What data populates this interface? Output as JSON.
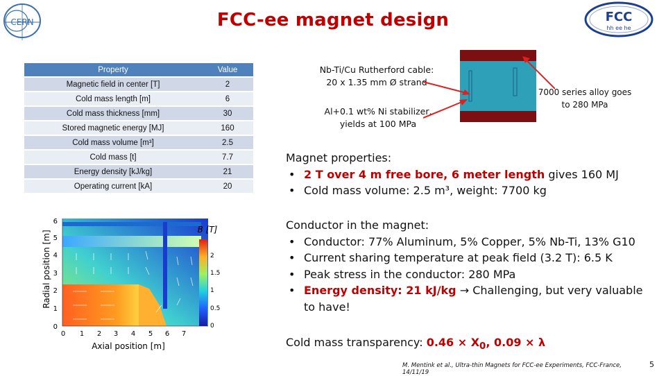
{
  "header": {
    "title": "FCC-ee magnet design",
    "cern_logo_text": "CERN",
    "fcc_logo_text": "FCC",
    "fcc_logo_sub": "hh ee he"
  },
  "table": {
    "headers": [
      "Property",
      "Value"
    ],
    "rows": [
      {
        "property": "Magnetic field in center [T]",
        "value": "2"
      },
      {
        "property": "Cold mass length [m]",
        "value": "6"
      },
      {
        "property": "Cold mass thickness [mm]",
        "value": "30"
      },
      {
        "property": "Stored magnetic energy [MJ]",
        "value": "160"
      },
      {
        "property": "Cold mass volume [m³]",
        "value": "2.5"
      },
      {
        "property": "Cold mass [t]",
        "value": "7.7"
      },
      {
        "property": "Energy density [kJ/kg]",
        "value": "21"
      },
      {
        "property": "Operating current [kA]",
        "value": "20"
      }
    ]
  },
  "cable_figure": {
    "label1_line1": "Nb-Ti/Cu Rutherford cable:",
    "label1_line2": "20 x 1.35 mm Ø strand",
    "label2_line1": "Al+0.1 wt% Ni stabilizer,",
    "label2_line2": "yields at 100 MPa",
    "label3_line1": "7000 series alloy goes",
    "label3_line2": "to 280 MPa",
    "colors": {
      "conductor": "#2ea0b8",
      "alloy": "#7b0f12",
      "arrow": "#e0201c"
    }
  },
  "field_map": {
    "ylabel": "Radial position [m]",
    "xlabel": "Axial position [m]",
    "x_ticks": [
      "0",
      "1",
      "2",
      "3",
      "4",
      "5",
      "6",
      "7"
    ],
    "y_ticks": [
      "0",
      "1",
      "2",
      "3",
      "4",
      "5",
      "6"
    ],
    "colorbar_title": "B [T]",
    "colorbar_ticks": [
      "0",
      "0.5",
      "1",
      "1.5",
      "2"
    ],
    "colorbar_range": [
      0,
      2.4
    ]
  },
  "magnet_properties": {
    "heading": "Magnet properties:",
    "bullet1_red": "2 T over 4 m free bore, 6 meter length",
    "bullet1_rest": " gives 160 MJ",
    "bullet2": "Cold mass volume: 2.5 m³, weight: 7700 kg"
  },
  "conductor": {
    "heading": "Conductor in the magnet:",
    "bullets": [
      "Conductor: 77% Aluminum, 5% Copper, 5% Nb-Ti, 13% G10",
      "Current sharing temperature at peak field (3.2 T): 6.5 K",
      "Peak stress in the conductor: 280 MPa"
    ],
    "bullet4_red": "Energy density: 21 kJ/kg",
    "bullet4_arrow": "→",
    "bullet4_rest": " Challenging, but very valuable to have!"
  },
  "transparency": {
    "label": "Cold mass transparency: ",
    "value1": "0.46 × X",
    "sub": "0",
    "value2": ", 0.09 × λ"
  },
  "footer": {
    "citation": "M. Mentink et al., Ultra-thin Magnets for FCC-ee Experiments, FCC-France, 14/11/19",
    "page_number": "5"
  }
}
